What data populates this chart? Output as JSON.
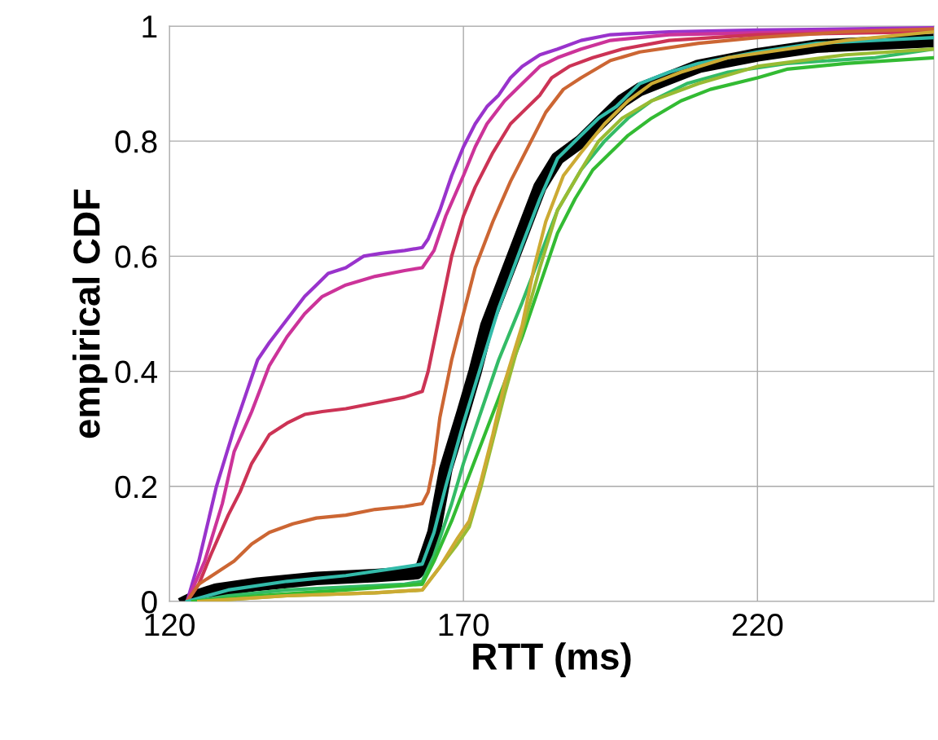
{
  "chart_data": {
    "type": "line",
    "xlabel": "RTT (ms)",
    "ylabel": "empirical CDF",
    "xlim": [
      120,
      250
    ],
    "xticks": [
      120,
      170,
      220
    ],
    "ylim": [
      0,
      1
    ],
    "yticks": [
      0,
      0.2,
      0.4,
      0.6,
      0.8,
      1
    ],
    "grid": true,
    "marker": "none",
    "line_style": "solid",
    "series": [
      {
        "color": "#000000",
        "x": [
          123,
          125,
          128,
          135,
          145,
          155,
          162,
          163,
          165,
          167,
          170,
          172,
          174,
          177,
          180,
          183,
          186,
          190,
          193,
          197,
          200,
          205,
          210,
          220,
          230,
          240,
          250
        ],
        "values": [
          0,
          0.01,
          0.02,
          0.03,
          0.04,
          0.045,
          0.05,
          0.06,
          0.12,
          0.23,
          0.33,
          0.4,
          0.48,
          0.56,
          0.64,
          0.72,
          0.77,
          0.8,
          0.83,
          0.87,
          0.89,
          0.91,
          0.93,
          0.95,
          0.965,
          0.97,
          0.975
        ]
      },
      {
        "color": "#9933cc",
        "x": [
          123,
          125,
          128,
          131,
          133,
          135,
          137,
          140,
          143,
          145,
          147,
          150,
          153,
          156,
          160,
          163,
          164,
          166,
          168,
          170,
          172,
          174,
          176,
          178,
          180,
          183,
          186,
          190,
          195,
          205,
          220,
          250
        ],
        "values": [
          0,
          0.07,
          0.2,
          0.3,
          0.36,
          0.42,
          0.45,
          0.49,
          0.53,
          0.55,
          0.57,
          0.58,
          0.6,
          0.605,
          0.61,
          0.615,
          0.63,
          0.68,
          0.74,
          0.79,
          0.83,
          0.86,
          0.88,
          0.91,
          0.93,
          0.95,
          0.96,
          0.975,
          0.985,
          0.99,
          0.993,
          0.997
        ]
      },
      {
        "color": "#cc3399",
        "x": [
          123,
          126,
          129,
          131,
          134,
          137,
          140,
          143,
          146,
          150,
          155,
          160,
          163,
          165,
          167,
          170,
          172,
          174,
          177,
          180,
          183,
          186,
          190,
          195,
          205,
          250
        ],
        "values": [
          0,
          0.07,
          0.17,
          0.26,
          0.33,
          0.41,
          0.46,
          0.5,
          0.53,
          0.55,
          0.565,
          0.575,
          0.58,
          0.61,
          0.67,
          0.74,
          0.79,
          0.83,
          0.87,
          0.9,
          0.93,
          0.945,
          0.96,
          0.975,
          0.985,
          0.995
        ]
      },
      {
        "color": "#cc3355",
        "x": [
          123,
          125,
          127,
          130,
          132,
          134,
          137,
          140,
          143,
          146,
          150,
          155,
          160,
          163,
          164,
          166,
          168,
          170,
          172,
          175,
          178,
          180,
          183,
          185,
          188,
          192,
          197,
          205,
          220,
          250
        ],
        "values": [
          0,
          0.03,
          0.08,
          0.15,
          0.19,
          0.24,
          0.29,
          0.31,
          0.325,
          0.33,
          0.335,
          0.345,
          0.355,
          0.365,
          0.4,
          0.5,
          0.6,
          0.67,
          0.72,
          0.78,
          0.83,
          0.85,
          0.88,
          0.91,
          0.93,
          0.945,
          0.96,
          0.975,
          0.985,
          0.99
        ]
      },
      {
        "color": "#cc6633",
        "x": [
          123,
          125,
          128,
          131,
          134,
          137,
          141,
          145,
          150,
          155,
          160,
          163,
          164,
          165,
          166,
          168,
          170,
          172,
          175,
          178,
          181,
          184,
          187,
          190,
          195,
          200,
          210,
          220,
          235,
          250
        ],
        "values": [
          0,
          0.03,
          0.05,
          0.07,
          0.1,
          0.12,
          0.135,
          0.145,
          0.15,
          0.16,
          0.165,
          0.17,
          0.19,
          0.24,
          0.32,
          0.42,
          0.5,
          0.58,
          0.66,
          0.73,
          0.79,
          0.85,
          0.89,
          0.91,
          0.94,
          0.955,
          0.97,
          0.98,
          0.99,
          0.995
        ]
      },
      {
        "color": "#33bbaa",
        "x": [
          123,
          130,
          140,
          150,
          160,
          163,
          165,
          167,
          170,
          173,
          176,
          180,
          183,
          186,
          190,
          193,
          196,
          200,
          205,
          210,
          220,
          230,
          250
        ],
        "values": [
          0,
          0.02,
          0.035,
          0.045,
          0.06,
          0.065,
          0.12,
          0.2,
          0.31,
          0.41,
          0.51,
          0.62,
          0.7,
          0.77,
          0.81,
          0.84,
          0.86,
          0.9,
          0.92,
          0.935,
          0.955,
          0.97,
          0.98
        ]
      },
      {
        "color": "#33bb66",
        "x": [
          124,
          130,
          140,
          150,
          160,
          163,
          165,
          168,
          170,
          173,
          176,
          180,
          183,
          186,
          190,
          194,
          198,
          202,
          208,
          215,
          225,
          240,
          250
        ],
        "values": [
          0,
          0.01,
          0.02,
          0.025,
          0.03,
          0.035,
          0.08,
          0.17,
          0.24,
          0.33,
          0.42,
          0.52,
          0.6,
          0.68,
          0.75,
          0.8,
          0.84,
          0.87,
          0.9,
          0.92,
          0.935,
          0.945,
          0.96
        ]
      },
      {
        "color": "#33bb33",
        "x": [
          124,
          135,
          150,
          163,
          165,
          168,
          171,
          174,
          177,
          180,
          183,
          186,
          189,
          192,
          195,
          198,
          202,
          207,
          212,
          220,
          225,
          235,
          250
        ],
        "values": [
          0,
          0.01,
          0.02,
          0.03,
          0.07,
          0.14,
          0.22,
          0.3,
          0.38,
          0.46,
          0.55,
          0.64,
          0.7,
          0.75,
          0.78,
          0.81,
          0.84,
          0.87,
          0.89,
          0.91,
          0.925,
          0.935,
          0.945
        ]
      },
      {
        "color": "#99bb33",
        "x": [
          125,
          140,
          155,
          163,
          166,
          169,
          171,
          173,
          175,
          177,
          180,
          183,
          186,
          190,
          193,
          197,
          202,
          210,
          220,
          235,
          250
        ],
        "values": [
          0,
          0.01,
          0.015,
          0.02,
          0.06,
          0.1,
          0.13,
          0.2,
          0.28,
          0.36,
          0.47,
          0.58,
          0.68,
          0.75,
          0.8,
          0.84,
          0.87,
          0.9,
          0.93,
          0.95,
          0.96
        ]
      },
      {
        "color": "#ccaa33",
        "x": [
          125,
          140,
          155,
          163,
          166,
          169,
          171,
          173,
          175,
          177,
          180,
          182,
          184,
          187,
          190,
          194,
          198,
          202,
          207,
          215,
          225,
          235,
          250
        ],
        "values": [
          0,
          0.01,
          0.015,
          0.02,
          0.06,
          0.11,
          0.14,
          0.21,
          0.29,
          0.38,
          0.48,
          0.58,
          0.66,
          0.74,
          0.78,
          0.83,
          0.87,
          0.9,
          0.92,
          0.945,
          0.96,
          0.975,
          0.99
        ]
      }
    ]
  }
}
